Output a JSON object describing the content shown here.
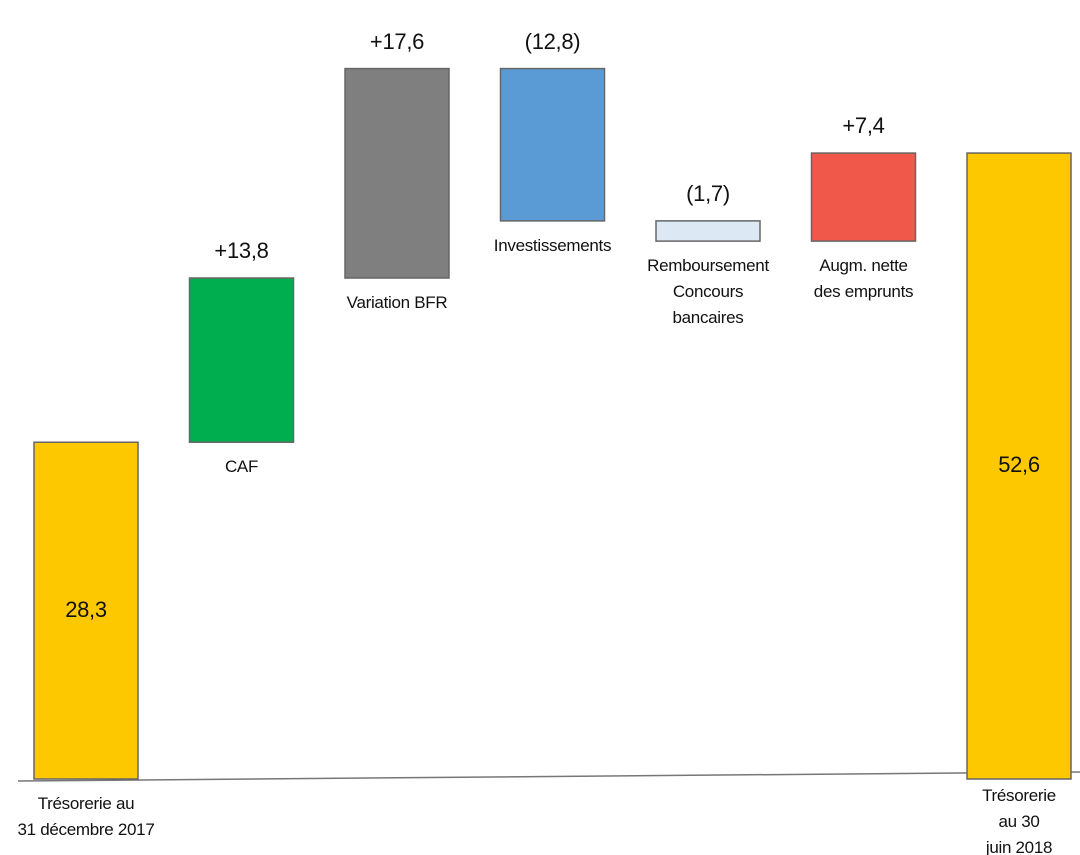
{
  "chart_data": {
    "type": "waterfall",
    "categories": [
      "Trésorerie au\n31 décembre 2017",
      "CAF",
      "Variation BFR",
      "Investissements",
      "Remboursement\nConcours\nbancaires",
      "Augm. nette\ndes emprunts",
      "Trésorerie au 30\njuin 2018"
    ],
    "measure": [
      "absolute",
      "relative",
      "relative",
      "relative",
      "relative",
      "relative",
      "total"
    ],
    "values": [
      28.3,
      13.8,
      17.6,
      -12.8,
      -1.7,
      7.4,
      52.6
    ],
    "value_labels": [
      "28,3",
      "+13,8",
      "+17,6",
      "(12,8)",
      "(1,7)",
      "+7,4",
      "52,6"
    ],
    "colors": [
      "#fec800",
      "#00ad4f",
      "#7f7f7f",
      "#5b9bd5",
      "#dce9f5",
      "#f0584a",
      "#fec800"
    ]
  }
}
